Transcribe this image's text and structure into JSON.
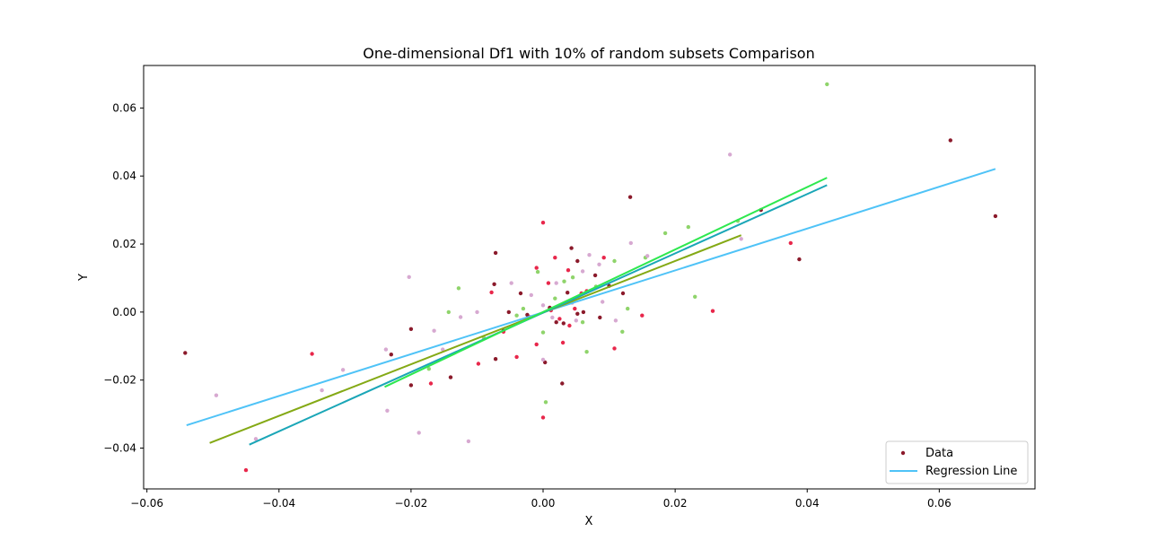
{
  "chart_data": {
    "type": "scatter",
    "title": "One-dimensional Df1 with 10% of random subsets Comparison",
    "xlabel": "X",
    "ylabel": "Y",
    "xlim": [
      -0.0605,
      0.0745
    ],
    "ylim": [
      -0.052,
      0.0725
    ],
    "xticks": [
      -0.06,
      -0.04,
      -0.02,
      0.0,
      0.02,
      0.04,
      0.06
    ],
    "xtick_labels": [
      "−0.06",
      "−0.04",
      "−0.02",
      "0.00",
      "0.02",
      "0.04",
      "0.06"
    ],
    "yticks": [
      -0.04,
      -0.02,
      0.0,
      0.02,
      0.04,
      0.06
    ],
    "ytick_labels": [
      "−0.04",
      "−0.02",
      "0.00",
      "0.02",
      "0.04",
      "0.06"
    ],
    "grid": false,
    "legend": {
      "placement": "lower-right",
      "entries": [
        {
          "label": "Data",
          "kind": "marker",
          "color": "#8b1a2b"
        },
        {
          "label": "Regression Line",
          "kind": "line",
          "color": "#4fc3f7"
        }
      ]
    },
    "series": [
      {
        "color": "#8b1a2b",
        "points": [
          [
            -0.0542,
            -0.012
          ],
          [
            0.0617,
            0.0505
          ],
          [
            0.0685,
            0.0282
          ],
          [
            0.0388,
            0.0155
          ],
          [
            0.0132,
            0.0338
          ],
          [
            -0.023,
            -0.0125
          ],
          [
            -0.02,
            -0.005
          ],
          [
            -0.0072,
            0.0174
          ],
          [
            -0.0074,
            0.0082
          ],
          [
            0.0043,
            0.0188
          ],
          [
            0.0029,
            -0.021
          ],
          [
            -0.02,
            -0.0215
          ],
          [
            -0.014,
            -0.0192
          ],
          [
            0.0003,
            -0.0148
          ],
          [
            0.0037,
            0.0057
          ],
          [
            0.0052,
            0.015
          ],
          [
            0.0079,
            0.0108
          ],
          [
            0.0121,
            0.0055
          ],
          [
            0.0061,
            0.0
          ],
          [
            -0.0034,
            0.0055
          ],
          [
            -0.0072,
            -0.0138
          ],
          [
            -0.006,
            -0.0055
          ],
          [
            0.001,
            0.0013
          ],
          [
            0.0031,
            -0.0033
          ],
          [
            0.0052,
            -0.0005
          ],
          [
            0.0086,
            -0.0016
          ],
          [
            0.01,
            0.0077
          ],
          [
            0.002,
            -0.003
          ],
          [
            -0.0052,
            0.0
          ],
          [
            -0.0024,
            -0.0008
          ],
          [
            0.033,
            0.03
          ]
        ]
      },
      {
        "color": "#e8274b",
        "points": [
          [
            -0.045,
            -0.0465
          ],
          [
            -0.035,
            -0.0123
          ],
          [
            -0.017,
            -0.021
          ],
          [
            -0.0098,
            -0.0152
          ],
          [
            -0.0078,
            0.0058
          ],
          [
            -0.004,
            -0.0132
          ],
          [
            -0.001,
            -0.0095
          ],
          [
            0.0,
            0.0263
          ],
          [
            0.0,
            -0.031
          ],
          [
            0.0008,
            0.0085
          ],
          [
            0.0018,
            0.016
          ],
          [
            0.0038,
            0.0123
          ],
          [
            0.004,
            -0.004
          ],
          [
            0.0058,
            0.0055
          ],
          [
            0.0092,
            0.016
          ],
          [
            0.0108,
            -0.0107
          ],
          [
            0.015,
            -0.001
          ],
          [
            0.0257,
            0.0003
          ],
          [
            0.0375,
            0.0203
          ],
          [
            -0.001,
            0.013
          ],
          [
            0.003,
            -0.009
          ],
          [
            0.0066,
            0.0062
          ],
          [
            -0.006,
            -0.0058
          ],
          [
            -0.002,
            -0.0015
          ],
          [
            0.0012,
            0.0005
          ],
          [
            0.0025,
            -0.002
          ],
          [
            0.0048,
            0.001
          ]
        ]
      },
      {
        "color": "#8fd46b",
        "points": [
          [
            0.043,
            0.067
          ],
          [
            0.0295,
            0.0268
          ],
          [
            0.022,
            0.025
          ],
          [
            0.023,
            0.0045
          ],
          [
            0.0185,
            0.0232
          ],
          [
            0.0155,
            0.016
          ],
          [
            0.0128,
            0.001
          ],
          [
            0.012,
            -0.0058
          ],
          [
            0.0066,
            -0.0117
          ],
          [
            0.0004,
            -0.0265
          ],
          [
            -0.0173,
            -0.0167
          ],
          [
            -0.0128,
            0.007
          ],
          [
            -0.0143,
            0.0
          ],
          [
            -0.009,
            -0.0075
          ],
          [
            0.0032,
            0.009
          ],
          [
            0.006,
            -0.003
          ],
          [
            0.008,
            0.0075
          ],
          [
            -0.003,
            0.001
          ],
          [
            0.0018,
            0.004
          ],
          [
            0.0045,
            0.0102
          ],
          [
            -0.0008,
            0.0118
          ],
          [
            -0.004,
            -0.001
          ],
          [
            0.0108,
            0.015
          ],
          [
            0.0,
            -0.006
          ]
        ]
      },
      {
        "color": "#d7a9d1",
        "points": [
          [
            -0.0495,
            -0.0245
          ],
          [
            -0.0435,
            -0.0373
          ],
          [
            -0.0335,
            -0.023
          ],
          [
            -0.0303,
            -0.017
          ],
          [
            -0.0238,
            -0.011
          ],
          [
            -0.0236,
            -0.029
          ],
          [
            -0.0203,
            0.0103
          ],
          [
            -0.0188,
            -0.0355
          ],
          [
            -0.0113,
            -0.038
          ],
          [
            0.0283,
            0.0463
          ],
          [
            0.03,
            0.0215
          ],
          [
            0.0158,
            0.0165
          ],
          [
            0.0133,
            0.0203
          ],
          [
            0.011,
            -0.0025
          ],
          [
            0.0085,
            0.014
          ],
          [
            0.007,
            0.0168
          ],
          [
            0.005,
            -0.0025
          ],
          [
            0.002,
            0.0085
          ],
          [
            0.0,
            -0.014
          ],
          [
            -0.0018,
            0.005
          ],
          [
            -0.0048,
            0.0085
          ],
          [
            -0.0125,
            -0.0015
          ],
          [
            -0.0165,
            -0.0055
          ],
          [
            -0.0152,
            -0.011
          ],
          [
            -0.01,
            0.0
          ],
          [
            0.0,
            0.002
          ],
          [
            0.0014,
            -0.0016
          ],
          [
            0.0044,
            0.0027
          ],
          [
            0.009,
            0.003
          ],
          [
            0.006,
            0.012
          ]
        ]
      }
    ],
    "regression_lines": [
      {
        "color": "#4fc3f7",
        "x": [
          -0.054,
          0.0685
        ],
        "y": [
          -0.0333,
          0.0421
        ]
      },
      {
        "color": "#84a915",
        "x": [
          -0.0505,
          0.03
        ],
        "y": [
          -0.0385,
          0.0226
        ]
      },
      {
        "color": "#1aa6b7",
        "x": [
          -0.0445,
          0.043
        ],
        "y": [
          -0.039,
          0.0373
        ]
      },
      {
        "color": "#2ee84f",
        "x": [
          -0.024,
          0.043
        ],
        "y": [
          -0.022,
          0.0395
        ]
      }
    ]
  }
}
